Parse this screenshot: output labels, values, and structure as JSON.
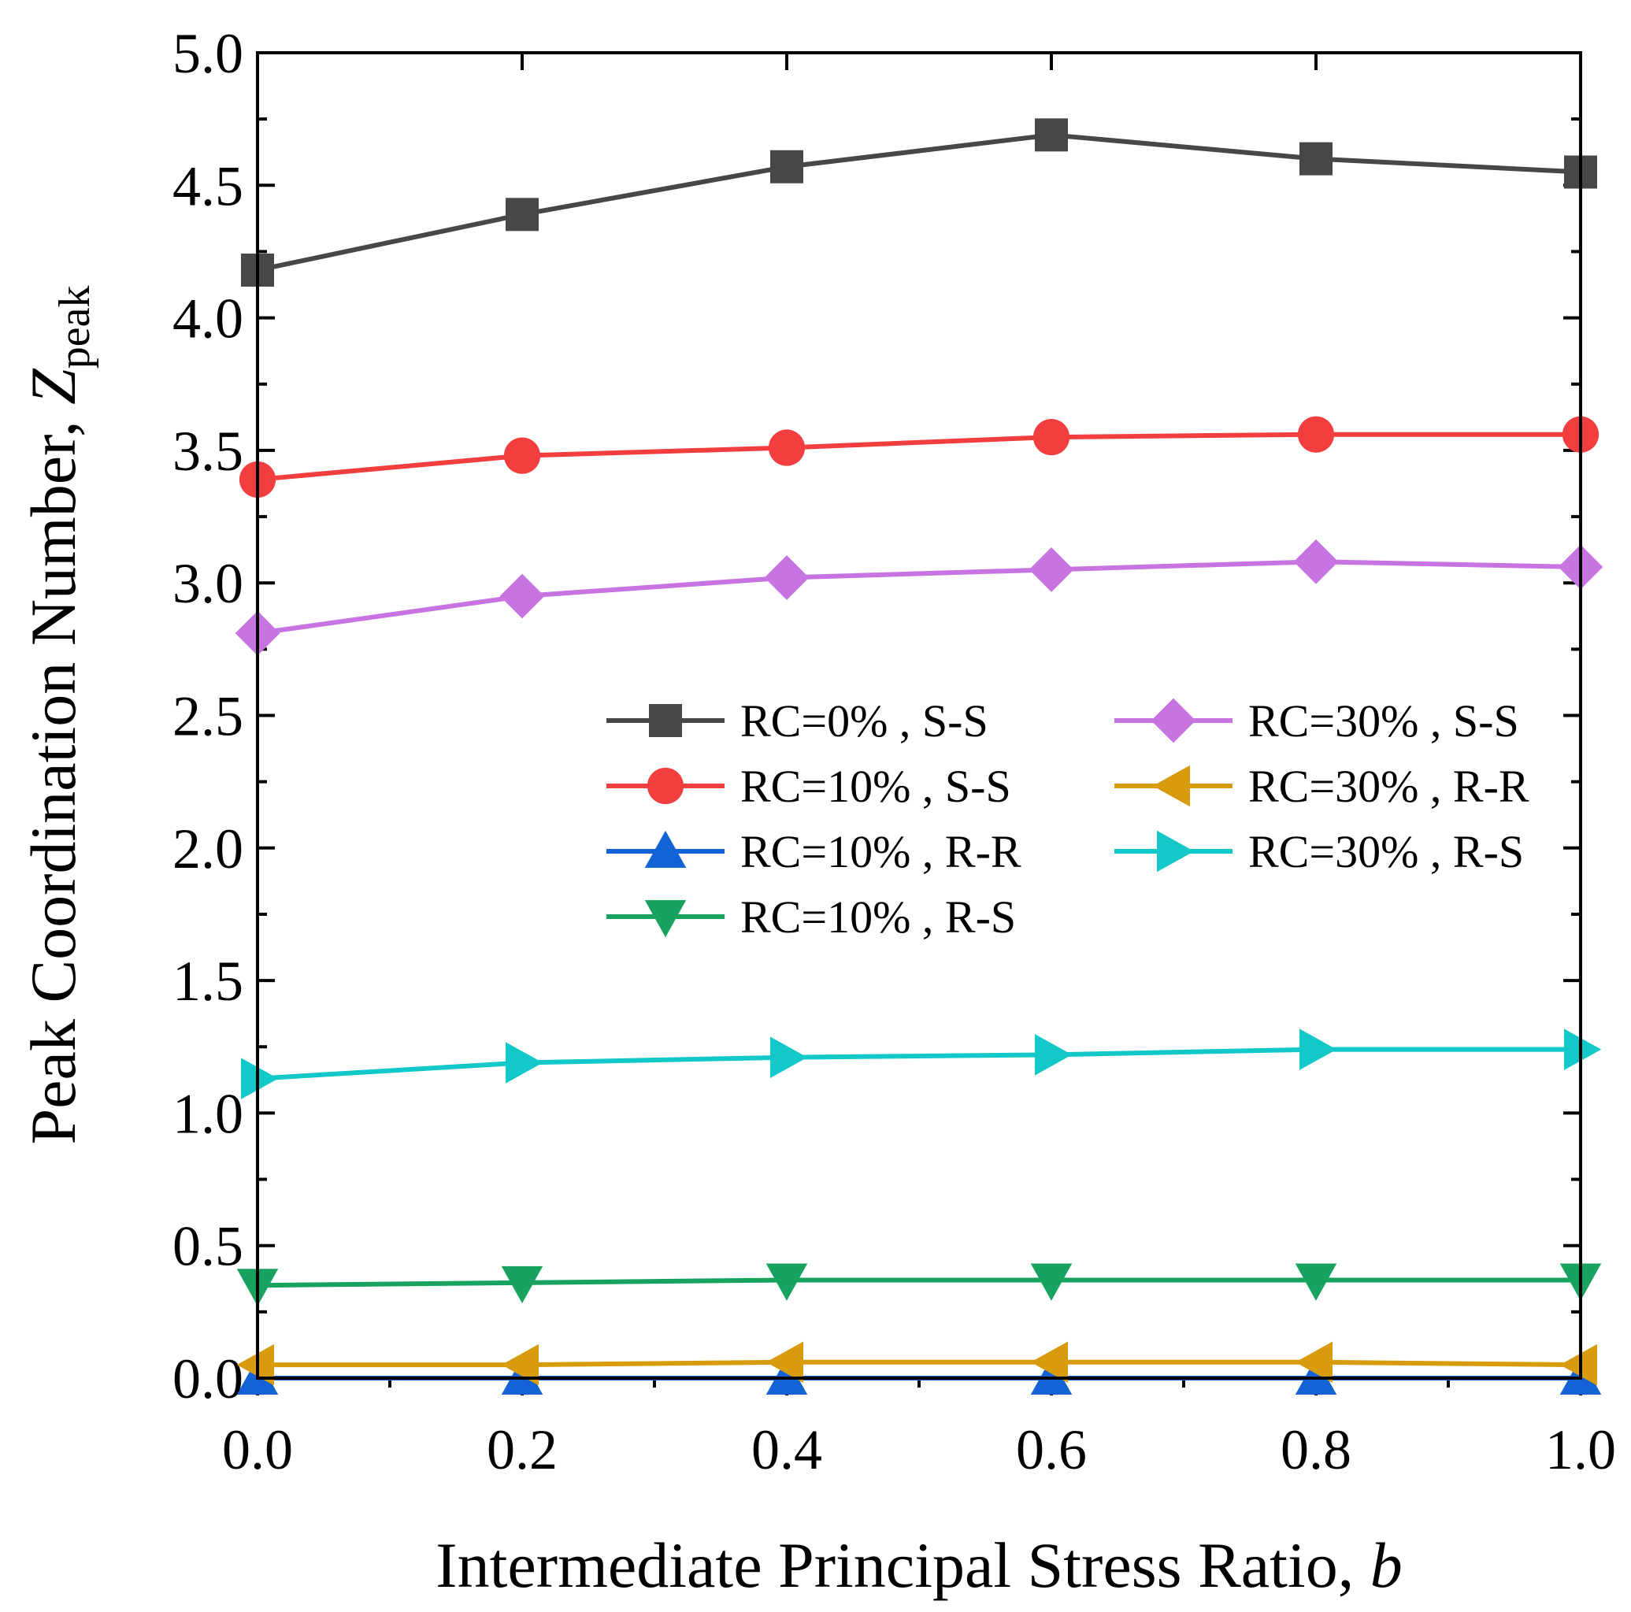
{
  "chart_data": {
    "type": "line",
    "title": "",
    "xlabel": "Intermediate Principal Stress Ratio, ",
    "xlabel_var": "b",
    "ylabel": "Peak Coordination Number, ",
    "ylabel_var": "Z",
    "ylabel_sub": "peak",
    "xlim": [
      0,
      1.0
    ],
    "ylim": [
      0,
      5.0
    ],
    "x": [
      0.0,
      0.2,
      0.4,
      0.6,
      0.8,
      1.0
    ],
    "x_ticks": [
      0.0,
      0.2,
      0.4,
      0.6,
      0.8,
      1.0
    ],
    "x_tick_labels": [
      "0.0",
      "0.2",
      "0.4",
      "0.6",
      "0.8",
      "1.0"
    ],
    "y_ticks": [
      0.0,
      0.5,
      1.0,
      1.5,
      2.0,
      2.5,
      3.0,
      3.5,
      4.0,
      4.5,
      5.0
    ],
    "y_tick_labels": [
      "0.0",
      "0.5",
      "1.0",
      "1.5",
      "2.0",
      "2.5",
      "3.0",
      "3.5",
      "4.0",
      "4.5",
      "5.0"
    ],
    "grid": false,
    "legend_position": "center-right",
    "series": [
      {
        "name": "RC=0% , S-S",
        "color": "#474747",
        "marker": "square",
        "values": [
          4.18,
          4.39,
          4.57,
          4.69,
          4.6,
          4.55
        ]
      },
      {
        "name": "RC=10% , S-S",
        "color": "#f23e3e",
        "marker": "circle",
        "values": [
          3.39,
          3.48,
          3.51,
          3.55,
          3.56,
          3.56
        ]
      },
      {
        "name": "RC=10% , R-R",
        "color": "#1363d6",
        "marker": "triangle-up",
        "values": [
          0.0,
          0.0,
          0.0,
          0.0,
          0.0,
          0.0
        ]
      },
      {
        "name": "RC=10% , R-S",
        "color": "#17a35f",
        "marker": "triangle-down",
        "values": [
          0.35,
          0.36,
          0.37,
          0.37,
          0.37,
          0.37
        ]
      },
      {
        "name": "RC=30% , S-S",
        "color": "#c774e2",
        "marker": "diamond",
        "values": [
          2.81,
          2.95,
          3.02,
          3.05,
          3.08,
          3.06
        ]
      },
      {
        "name": "RC=30% , R-R",
        "color": "#d99b0e",
        "marker": "triangle-left",
        "values": [
          0.05,
          0.05,
          0.06,
          0.06,
          0.06,
          0.05
        ]
      },
      {
        "name": "RC=30% , R-S",
        "color": "#12c8c8",
        "marker": "triangle-right",
        "values": [
          1.13,
          1.19,
          1.21,
          1.22,
          1.24,
          1.24
        ]
      }
    ]
  }
}
